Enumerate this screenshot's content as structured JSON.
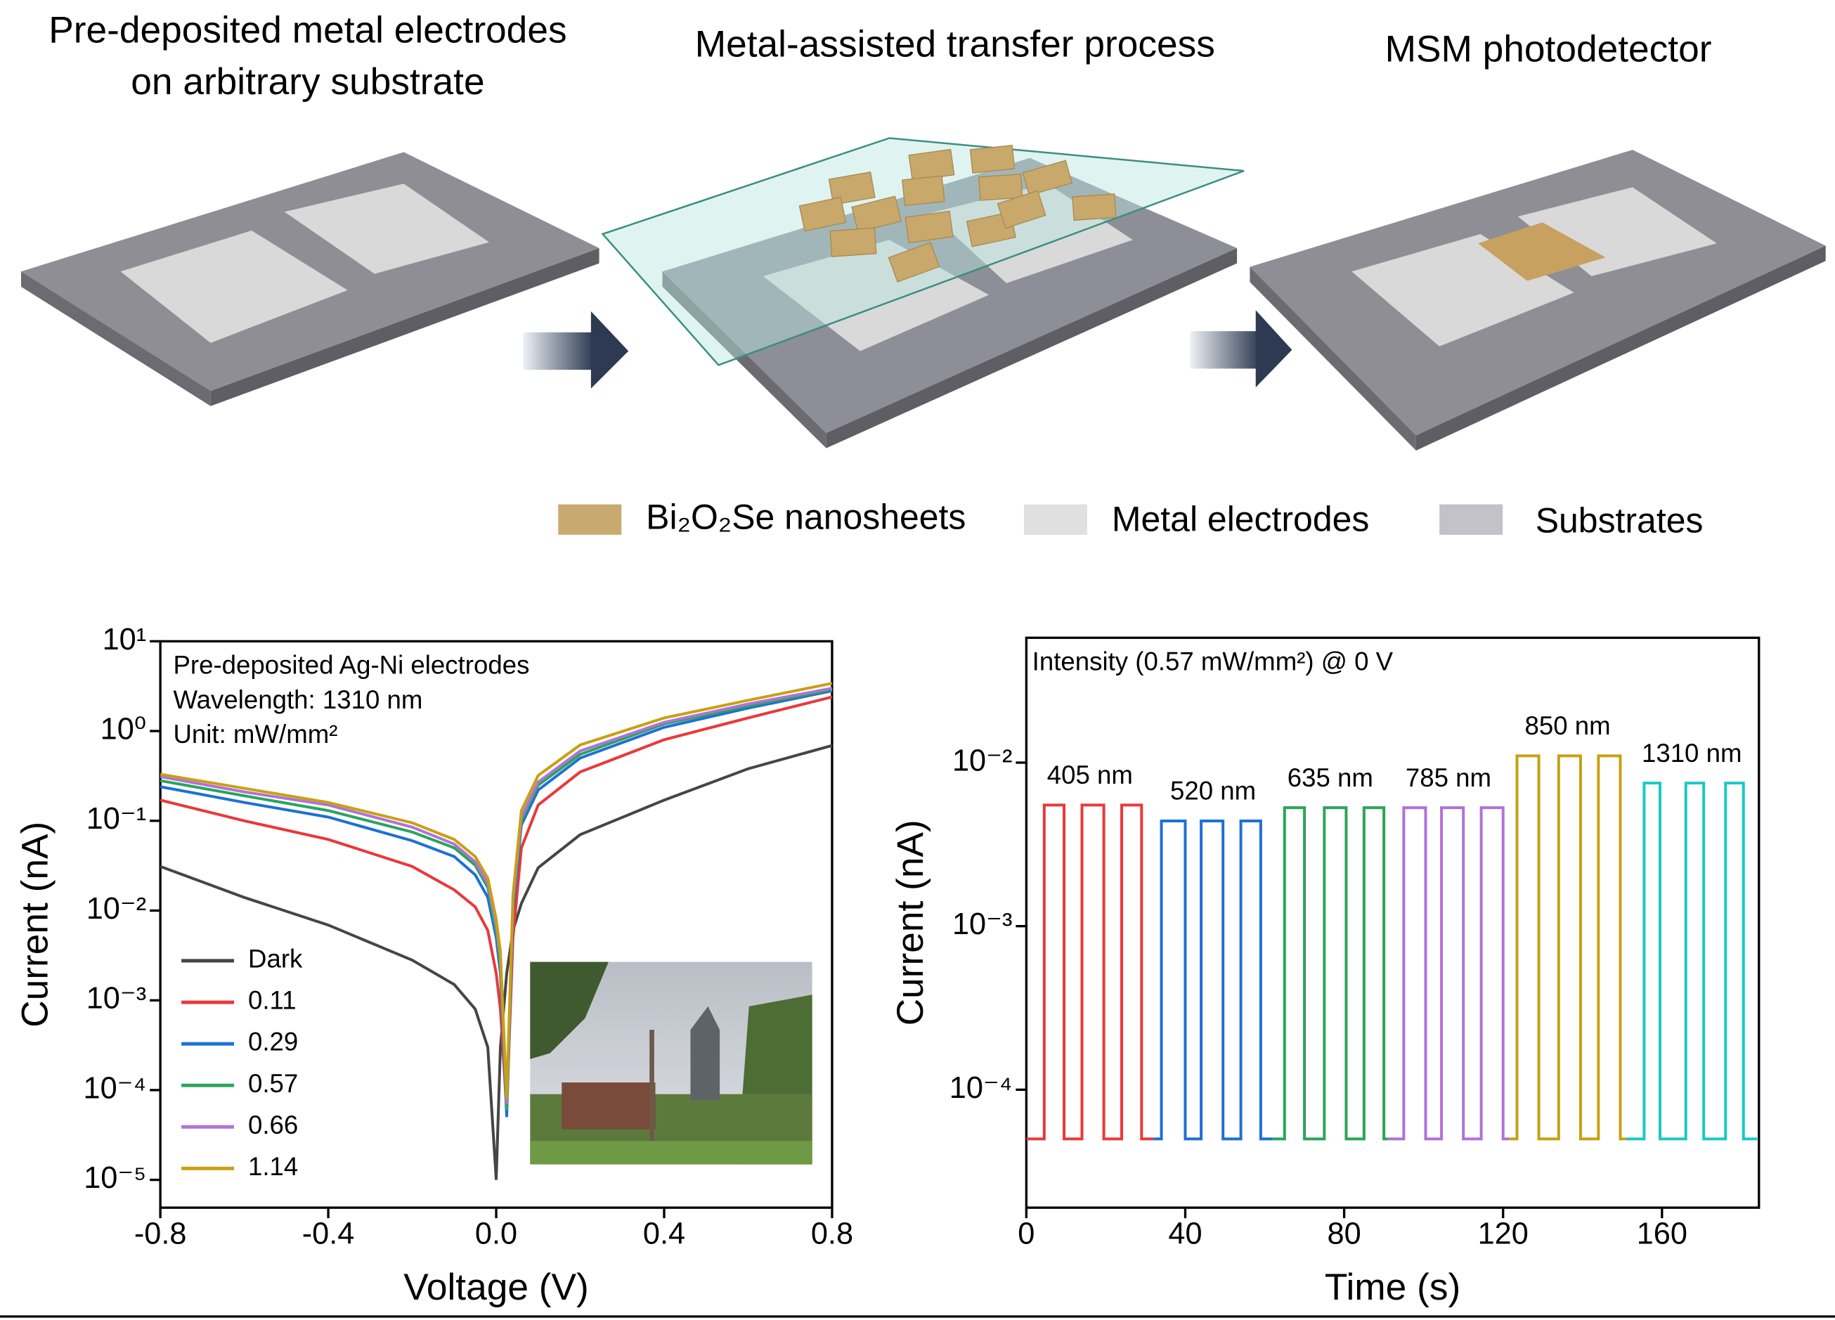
{
  "diagram": {
    "steps": [
      [
        "Pre-deposited metal electrodes",
        "on arbitrary substrate"
      ],
      [
        "Metal-assisted transfer process"
      ],
      [
        "MSM photodetector"
      ]
    ],
    "legend": [
      "Bi₂O₂Se nanosheets",
      "Metal electrodes",
      "Substrates"
    ]
  },
  "chart_data": [
    {
      "type": "line",
      "xlabel": "Voltage (V)",
      "ylabel": "Current (nA)",
      "annotations": [
        "Pre-deposited Ag-Ni electrodes",
        "Wavelength: 1310 nm",
        "Unit: mW/mm²"
      ],
      "yscale": "log",
      "legend": "lower left",
      "x": [
        -0.8,
        -0.6,
        -0.4,
        -0.2,
        -0.1,
        -0.05,
        -0.02,
        0,
        0.01,
        0.025,
        0.04,
        0.06,
        0.1,
        0.2,
        0.4,
        0.6,
        0.8
      ],
      "xlim": [
        -0.8,
        0.8
      ],
      "xticks": [
        -0.8,
        -0.4,
        {
          "value": 0,
          "label": "0.0"
        },
        0.4,
        0.8
      ],
      "ylim": [
        4.9e-06,
        10
      ],
      "yticks": [
        {
          "value": 10,
          "label": "10¹"
        },
        {
          "value": 1,
          "label": "10⁰"
        },
        {
          "value": 0.1,
          "label": "10⁻¹"
        },
        {
          "value": 0.01,
          "label": "10⁻²"
        },
        {
          "value": 0.001,
          "label": "10⁻³"
        },
        {
          "value": 0.0001,
          "label": "10⁻⁴"
        },
        {
          "value": 1e-05,
          "label": "10⁻⁵"
        }
      ],
      "series": [
        {
          "name": "Dark",
          "color": "#454545",
          "values": [
            0.031,
            0.014,
            0.0069,
            0.0028,
            0.0015,
            0.0008,
            0.0003,
            1e-05,
            0.0003,
            0.002,
            0.006,
            0.012,
            0.03,
            0.07,
            0.17,
            0.38,
            0.69
          ]
        },
        {
          "name": "0.11",
          "color": "#e8393b",
          "values": [
            0.17,
            0.1,
            0.062,
            0.031,
            0.017,
            0.011,
            0.006,
            0.002,
            0.0008,
            6e-05,
            0.005,
            0.05,
            0.15,
            0.35,
            0.8,
            1.4,
            2.4
          ]
        },
        {
          "name": "0.29",
          "color": "#1f6fd6",
          "values": [
            0.24,
            0.16,
            0.11,
            0.06,
            0.04,
            0.025,
            0.014,
            0.005,
            0.002,
            5e-05,
            0.01,
            0.09,
            0.22,
            0.5,
            1.1,
            1.8,
            2.8
          ]
        },
        {
          "name": "0.57",
          "color": "#2aa55a",
          "values": [
            0.28,
            0.19,
            0.13,
            0.075,
            0.05,
            0.032,
            0.018,
            0.006,
            0.0025,
            6e-05,
            0.012,
            0.1,
            0.25,
            0.55,
            1.2,
            1.9,
            2.9
          ]
        },
        {
          "name": "0.66",
          "color": "#b072d8",
          "values": [
            0.31,
            0.21,
            0.15,
            0.085,
            0.055,
            0.035,
            0.02,
            0.007,
            0.003,
            7e-05,
            0.013,
            0.11,
            0.27,
            0.6,
            1.25,
            2.0,
            3.0
          ]
        },
        {
          "name": "1.14",
          "color": "#c9a012",
          "values": [
            0.33,
            0.23,
            0.16,
            0.095,
            0.062,
            0.04,
            0.023,
            0.008,
            0.0035,
            8e-05,
            0.015,
            0.13,
            0.32,
            0.7,
            1.4,
            2.2,
            3.4
          ]
        }
      ]
    },
    {
      "type": "line",
      "xlabel": "Time (s)",
      "ylabel": "Current (nA)",
      "annotations": [
        "Intensity (0.57 mW/mm²) @ 0 V"
      ],
      "yscale": "log",
      "legend": "inline",
      "xlim": [
        0,
        184.4
      ],
      "xticks": [
        0,
        40,
        80,
        120,
        160
      ],
      "ylim": [
        1.9e-05,
        0.058
      ],
      "yticks": [
        {
          "value": 0.0001,
          "label": "10⁻⁴"
        },
        {
          "value": 0.001,
          "label": "10⁻³"
        },
        {
          "value": 0.01,
          "label": "10⁻²"
        }
      ],
      "series": [
        {
          "name": "405 nm",
          "color": "#e8393b",
          "x": [
            0,
            4.5,
            4.5,
            9.5,
            9.5,
            14,
            14,
            19.5,
            19.5,
            24,
            24,
            29,
            29,
            32
          ],
          "values": [
            5e-05,
            5e-05,
            0.0055,
            0.0055,
            5e-05,
            5e-05,
            0.0055,
            0.0055,
            5e-05,
            5e-05,
            0.0055,
            0.0055,
            5e-05,
            5e-05
          ]
        },
        {
          "name": "520 nm",
          "color": "#1f6fd6",
          "x": [
            32,
            34,
            34,
            40,
            40,
            44,
            44,
            49.5,
            49.5,
            54,
            54,
            59,
            59,
            62
          ],
          "values": [
            5e-05,
            5e-05,
            0.0044,
            0.0044,
            5e-05,
            5e-05,
            0.0044,
            0.0044,
            5e-05,
            5e-05,
            0.0044,
            0.0044,
            5e-05,
            5e-05
          ]
        },
        {
          "name": "635 nm",
          "color": "#2aa55a",
          "x": [
            62,
            65,
            65,
            70,
            70,
            75,
            75,
            80.5,
            80.5,
            85,
            85,
            90,
            90,
            91
          ],
          "values": [
            5e-05,
            5e-05,
            0.0053,
            0.0053,
            5e-05,
            5e-05,
            0.0053,
            0.0053,
            5e-05,
            5e-05,
            0.0053,
            0.0053,
            5e-05,
            5e-05
          ]
        },
        {
          "name": "785 nm",
          "color": "#b072d8",
          "x": [
            91,
            95,
            95,
            100.5,
            100.5,
            104.5,
            104.5,
            110,
            110,
            114.5,
            114.5,
            120,
            120,
            121.5
          ],
          "values": [
            5e-05,
            5e-05,
            0.0053,
            0.0053,
            5e-05,
            5e-05,
            0.0053,
            0.0053,
            5e-05,
            5e-05,
            0.0053,
            0.0053,
            5e-05,
            5e-05
          ]
        },
        {
          "name": "850 nm",
          "color": "#c9a012",
          "x": [
            121.5,
            123.5,
            123.5,
            129,
            129,
            134,
            134,
            139.5,
            139.5,
            144,
            144,
            149.5,
            149.5,
            151
          ],
          "values": [
            5e-05,
            5e-05,
            0.011,
            0.011,
            5e-05,
            5e-05,
            0.011,
            0.011,
            5e-05,
            5e-05,
            0.011,
            0.011,
            5e-05,
            5e-05
          ]
        },
        {
          "name": "1310 nm",
          "color": "#19c9c4",
          "x": [
            151,
            155.5,
            155.5,
            159.5,
            159.5,
            166,
            166,
            170.5,
            170.5,
            176,
            176,
            180.5,
            180.5,
            184
          ],
          "values": [
            5e-05,
            5e-05,
            0.0075,
            0.0075,
            5e-05,
            5e-05,
            0.0075,
            0.0075,
            5e-05,
            5e-05,
            0.0075,
            0.0075,
            5e-05,
            5e-05
          ]
        }
      ]
    }
  ]
}
